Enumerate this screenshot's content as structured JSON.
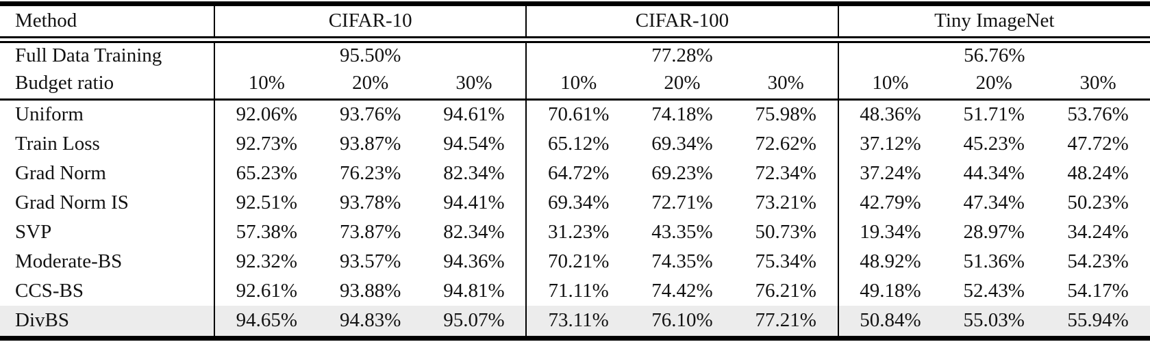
{
  "table": {
    "method_header": "Method",
    "full_data_label": "Full Data Training",
    "budget_label": "Budget ratio",
    "groups": [
      {
        "label": "CIFAR-10",
        "full_data": "95.50%",
        "budgets": [
          "10%",
          "20%",
          "30%"
        ]
      },
      {
        "label": "CIFAR-100",
        "full_data": "77.28%",
        "budgets": [
          "10%",
          "20%",
          "30%"
        ]
      },
      {
        "label": "Tiny ImageNet",
        "full_data": "56.76%",
        "budgets": [
          "10%",
          "20%",
          "30%"
        ]
      }
    ],
    "rows": [
      {
        "method": "Uniform",
        "highlight": false,
        "values": [
          "92.06%",
          "93.76%",
          "94.61%",
          "70.61%",
          "74.18%",
          "75.98%",
          "48.36%",
          "51.71%",
          "53.76%"
        ]
      },
      {
        "method": "Train Loss",
        "highlight": false,
        "values": [
          "92.73%",
          "93.87%",
          "94.54%",
          "65.12%",
          "69.34%",
          "72.62%",
          "37.12%",
          "45.23%",
          "47.72%"
        ]
      },
      {
        "method": "Grad Norm",
        "highlight": false,
        "values": [
          "65.23%",
          "76.23%",
          "82.34%",
          "64.72%",
          "69.23%",
          "72.34%",
          "37.24%",
          "44.34%",
          "48.24%"
        ]
      },
      {
        "method": "Grad Norm IS",
        "highlight": false,
        "values": [
          "92.51%",
          "93.78%",
          "94.41%",
          "69.34%",
          "72.71%",
          "73.21%",
          "42.79%",
          "47.34%",
          "50.23%"
        ]
      },
      {
        "method": "SVP",
        "highlight": false,
        "values": [
          "57.38%",
          "73.87%",
          "82.34%",
          "31.23%",
          "43.35%",
          "50.73%",
          "19.34%",
          "28.97%",
          "34.24%"
        ]
      },
      {
        "method": "Moderate-BS",
        "highlight": false,
        "values": [
          "92.32%",
          "93.57%",
          "94.36%",
          "70.21%",
          "74.35%",
          "75.34%",
          "48.92%",
          "51.36%",
          "54.23%"
        ]
      },
      {
        "method": "CCS-BS",
        "highlight": false,
        "values": [
          "92.61%",
          "93.88%",
          "94.81%",
          "71.11%",
          "74.42%",
          "76.21%",
          "49.18%",
          "52.43%",
          "54.17%"
        ]
      },
      {
        "method": "DivBS",
        "highlight": true,
        "values": [
          "94.65%",
          "94.83%",
          "95.07%",
          "73.11%",
          "76.10%",
          "77.21%",
          "50.84%",
          "55.03%",
          "55.94%"
        ]
      }
    ],
    "colors": {
      "highlight_row_bg": "#ECECEC",
      "rule_color": "#000000",
      "text_color": "#121212"
    }
  }
}
